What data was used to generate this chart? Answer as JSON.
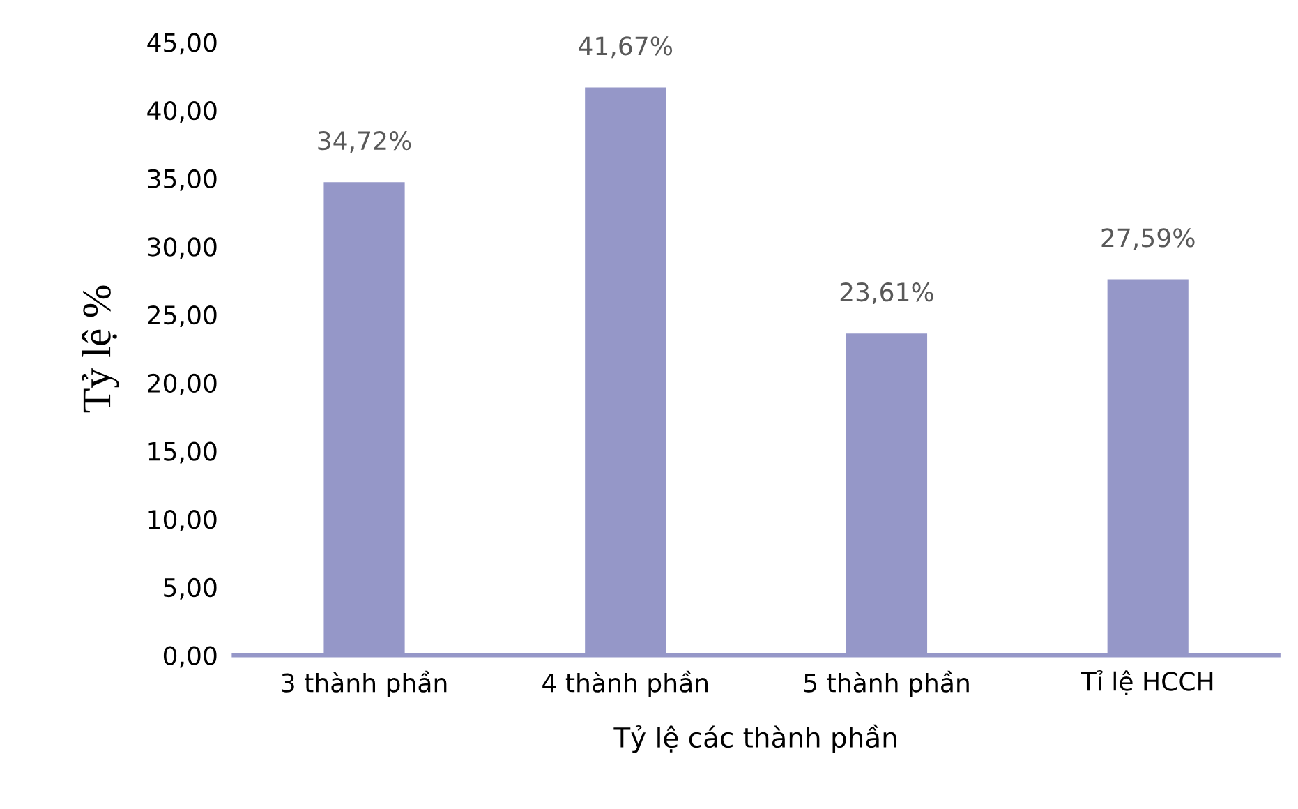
{
  "chart_data": {
    "type": "bar",
    "xlabel": "Tỷ lệ các thành phần",
    "ylabel": "Tỷ lệ %",
    "categories": [
      "3 thành phần",
      "4 thành phần",
      "5 thành phần",
      "Tỉ lệ HCCH"
    ],
    "values": [
      34.72,
      41.67,
      23.61,
      27.59
    ],
    "value_labels": [
      "34,72%",
      "41,67%",
      "23,61%",
      "27,59%"
    ],
    "color": "#9597c8",
    "ylim": [
      0,
      45
    ],
    "yticks": [
      {
        "value": 0,
        "label": "0,00"
      },
      {
        "value": 5,
        "label": "5,00"
      },
      {
        "value": 10,
        "label": "10,00"
      },
      {
        "value": 15,
        "label": "15,00"
      },
      {
        "value": 20,
        "label": "20,00"
      },
      {
        "value": 25,
        "label": "25,00"
      },
      {
        "value": 30,
        "label": "30,00"
      },
      {
        "value": 35,
        "label": "35,00"
      },
      {
        "value": 40,
        "label": "40,00"
      },
      {
        "value": 45,
        "label": "45,00"
      }
    ],
    "grid": false,
    "legend": false
  }
}
